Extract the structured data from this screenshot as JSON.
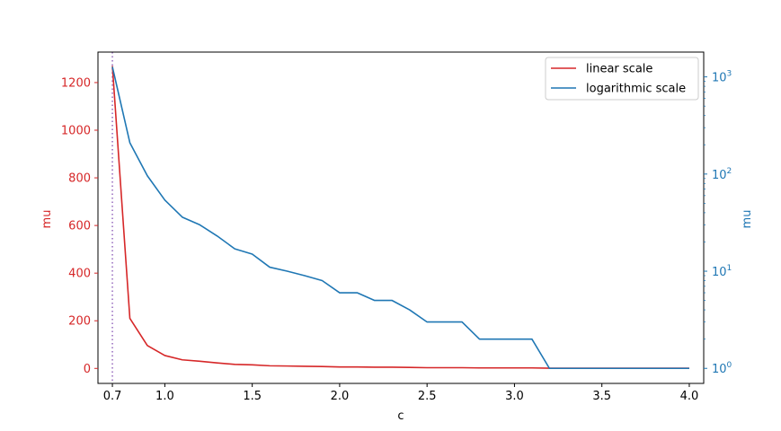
{
  "chart_data": {
    "type": "line",
    "xlabel": "c",
    "ylabel_left": "mu",
    "ylabel_right": "mu",
    "x_ticks": [
      "0.7",
      "1.0",
      "1.5",
      "2.0",
      "2.5",
      "3.0",
      "3.5",
      "4.0"
    ],
    "x_tick_values": [
      0.7,
      1.0,
      1.5,
      2.0,
      2.5,
      3.0,
      3.5,
      4.0
    ],
    "xlim": [
      0.6175,
      4.0825
    ],
    "left_axis": {
      "ylim": [
        -63,
        1328
      ],
      "ticks": [
        0,
        200,
        400,
        600,
        800,
        1000,
        1200
      ],
      "tick_labels": [
        "0",
        "200",
        "400",
        "600",
        "800",
        "1000",
        "1200"
      ]
    },
    "right_axis": {
      "scale": "log",
      "ylim": [
        0.7,
        1800
      ],
      "ticks": [
        1,
        10,
        100,
        1000
      ],
      "tick_labels": [
        [
          "10",
          "0"
        ],
        [
          "10",
          "1"
        ],
        [
          "10",
          "2"
        ],
        [
          "10",
          "3"
        ]
      ]
    },
    "vertical_line": {
      "x": 0.7,
      "color": "#9467bd",
      "style": "dotted"
    },
    "x": [
      0.7,
      0.8,
      0.9,
      1.0,
      1.1,
      1.2,
      1.3,
      1.4,
      1.5,
      1.6,
      1.7,
      1.8,
      1.9,
      2.0,
      2.1,
      2.2,
      2.3,
      2.4,
      2.5,
      2.6,
      2.7,
      2.8,
      2.9,
      3.0,
      3.1,
      3.2,
      3.3,
      3.4,
      3.5,
      3.6,
      3.7,
      3.8,
      3.9,
      4.0
    ],
    "series": [
      {
        "name": "linear scale",
        "axis": "left",
        "color": "#d62728",
        "values": [
          1270,
          210,
          96,
          54,
          36,
          30,
          23,
          17,
          15,
          11,
          10,
          9,
          8,
          6,
          6,
          5,
          5,
          4,
          3,
          3,
          3,
          2,
          2,
          2,
          2,
          1,
          1,
          1,
          1,
          1,
          1,
          1,
          1,
          1
        ]
      },
      {
        "name": "logarithmic scale",
        "axis": "right",
        "color": "#1f77b4",
        "values": [
          1270,
          210,
          96,
          54,
          36,
          30,
          23,
          17,
          15,
          11,
          10,
          9,
          8,
          6,
          6,
          5,
          5,
          4,
          3,
          3,
          3,
          2,
          2,
          2,
          2,
          1,
          1,
          1,
          1,
          1,
          1,
          1,
          1,
          1
        ]
      }
    ],
    "left_color": "#d62728",
    "right_color": "#1f77b4",
    "grid": false,
    "legend_position": "top-right"
  }
}
